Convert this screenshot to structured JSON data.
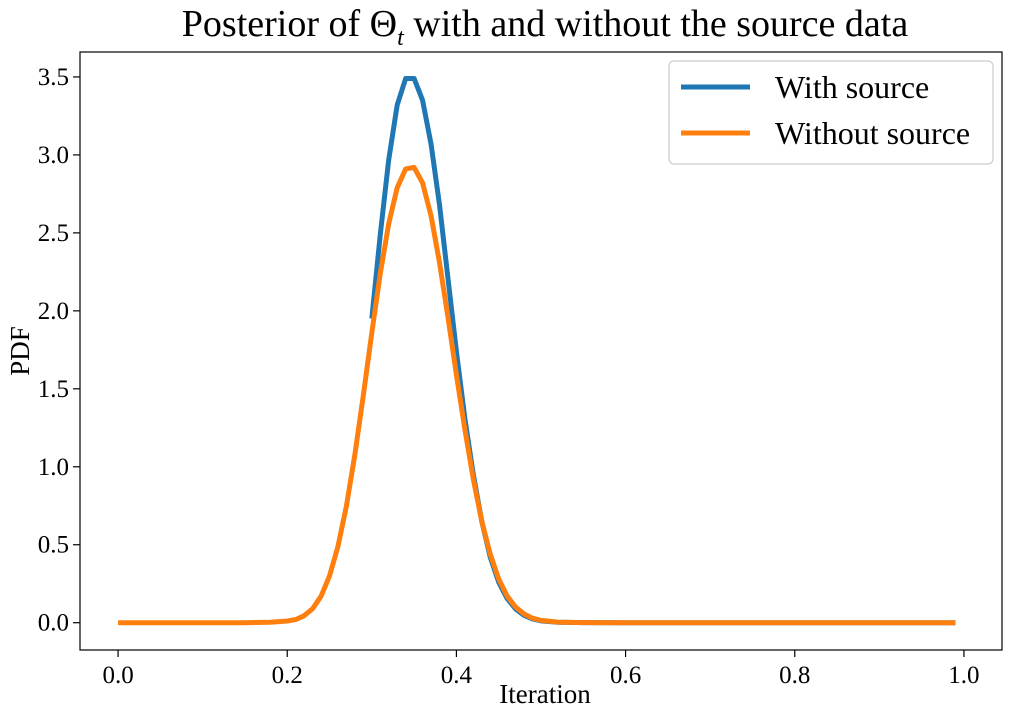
{
  "chart_data": {
    "type": "line",
    "title": {
      "prefix": "Posterior of ",
      "symbol": "Θ",
      "subscript": "t",
      "suffix": " with and without the source data"
    },
    "xlabel": "Iteration",
    "ylabel": "PDF",
    "xlim": [
      -0.045,
      1.045
    ],
    "ylim": [
      -0.175,
      3.66
    ],
    "xticks": [
      0.0,
      0.2,
      0.4,
      0.6,
      0.8,
      1.0
    ],
    "xtick_labels": [
      "0.0",
      "0.2",
      "0.4",
      "0.6",
      "0.8",
      "1.0"
    ],
    "yticks": [
      0.0,
      0.5,
      1.0,
      1.5,
      2.0,
      2.5,
      3.0,
      3.5
    ],
    "ytick_labels": [
      "0.0",
      "0.5",
      "1.0",
      "1.5",
      "2.0",
      "2.5",
      "3.0",
      "3.5"
    ],
    "grid": false,
    "legend_position": "upper right",
    "series": [
      {
        "name": "With source",
        "color": "#1f77b4",
        "x": [
          0.3,
          0.31,
          0.32,
          0.33,
          0.34,
          0.35,
          0.36,
          0.37,
          0.38,
          0.39,
          0.4,
          0.41,
          0.42,
          0.43,
          0.44,
          0.45,
          0.46,
          0.47,
          0.48,
          0.49,
          0.5,
          0.52,
          0.55,
          0.6,
          0.65,
          0.7,
          0.8,
          0.9,
          0.99
        ],
        "y": [
          1.95,
          2.49,
          2.97,
          3.32,
          3.49,
          3.49,
          3.35,
          3.07,
          2.68,
          2.21,
          1.74,
          1.31,
          0.95,
          0.65,
          0.42,
          0.26,
          0.155,
          0.088,
          0.047,
          0.024,
          0.012,
          0.003,
          0.0005,
          0.0,
          0.0,
          0.0,
          0.0,
          0.0,
          0.0
        ]
      },
      {
        "name": "Without source",
        "color": "#ff7f0e",
        "x": [
          0.0,
          0.05,
          0.1,
          0.15,
          0.18,
          0.2,
          0.21,
          0.22,
          0.23,
          0.24,
          0.25,
          0.26,
          0.27,
          0.28,
          0.29,
          0.3,
          0.31,
          0.32,
          0.33,
          0.34,
          0.35,
          0.36,
          0.37,
          0.38,
          0.39,
          0.4,
          0.41,
          0.42,
          0.43,
          0.44,
          0.45,
          0.46,
          0.47,
          0.48,
          0.49,
          0.5,
          0.52,
          0.55,
          0.6,
          0.7,
          0.8,
          0.9,
          0.99
        ],
        "y": [
          0.0,
          0.0,
          0.0,
          0.0,
          0.003,
          0.011,
          0.02,
          0.045,
          0.09,
          0.17,
          0.3,
          0.49,
          0.75,
          1.08,
          1.46,
          1.86,
          2.24,
          2.56,
          2.79,
          2.91,
          2.92,
          2.82,
          2.61,
          2.31,
          1.96,
          1.59,
          1.24,
          0.92,
          0.65,
          0.44,
          0.28,
          0.17,
          0.1,
          0.056,
          0.029,
          0.015,
          0.004,
          0.0005,
          0.0,
          0.0,
          0.0,
          0.0,
          0.0
        ]
      }
    ]
  }
}
